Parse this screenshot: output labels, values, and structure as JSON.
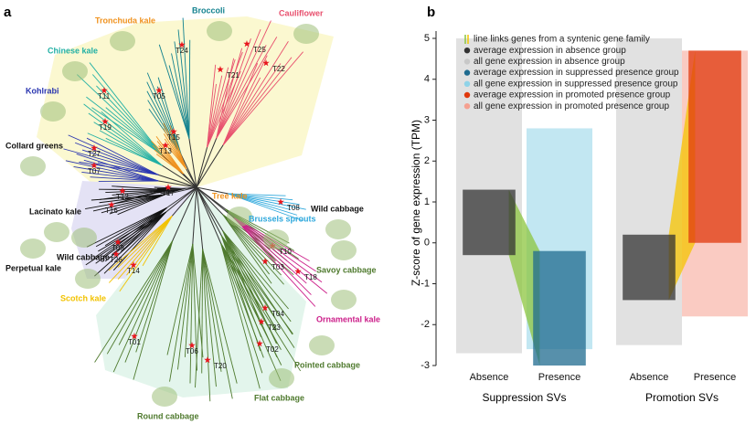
{
  "panel_a": {
    "label": "a",
    "groups": [
      {
        "label": "Tronchuda kale",
        "color": "#f0921e"
      },
      {
        "label": "Broccoli",
        "color": "#13828f"
      },
      {
        "label": "Cauliflower",
        "color": "#e8506e"
      },
      {
        "label": "Chinese kale",
        "color": "#22b0a4"
      },
      {
        "label": "Kohlrabi",
        "color": "#2a36b0"
      },
      {
        "label": "Collard greens",
        "color": "#111111"
      },
      {
        "label": "Tree kale",
        "color": "#f0921e"
      },
      {
        "label": "Brussels sprouts",
        "color": "#2ea8dc"
      },
      {
        "label": "Wild cabbage",
        "color": "#111111"
      },
      {
        "label": "Lacinato kale",
        "color": "#111111"
      },
      {
        "label": "Wild cabbage",
        "color": "#111111"
      },
      {
        "label": "Perpetual kale",
        "color": "#111111"
      },
      {
        "label": "Savoy cabbage",
        "color": "#4f7a2e"
      },
      {
        "label": "Scotch kale",
        "color": "#f2c200"
      },
      {
        "label": "Ornamental kale",
        "color": "#cc1f8a"
      },
      {
        "label": "Pointed cabbage",
        "color": "#4f7a2e"
      },
      {
        "label": "Flat cabbage",
        "color": "#4f7a2e"
      },
      {
        "label": "Round cabbage",
        "color": "#4f7a2e"
      }
    ],
    "nodes": [
      "T24",
      "T25",
      "T22",
      "T21",
      "T05",
      "T11",
      "T19",
      "T15",
      "T13",
      "T27",
      "T07",
      "T17",
      "T12",
      "T16",
      "T08",
      "T10",
      "T03",
      "T09",
      "T26",
      "T14",
      "T18",
      "T04",
      "T23",
      "T01",
      "T06",
      "T20",
      "T02"
    ]
  },
  "chart_data": {
    "type": "strip",
    "panel_label": "b",
    "ylabel": "Z-score of gene expression (TPM)",
    "categories": [
      "Absence",
      "Presence",
      "Absence",
      "Presence"
    ],
    "group_labels": [
      "Suppression SVs",
      "Promotion SVs"
    ],
    "ylim": [
      -3,
      5
    ],
    "yticks": [
      -3,
      -2,
      -1,
      0,
      1,
      2,
      3,
      4,
      5
    ],
    "series": [
      {
        "name": "line links genes from a syntenic gene family",
        "colors": [
          "#8cc63f",
          "#f5c400"
        ]
      },
      {
        "name": "average expression in absence group",
        "color": "#333333",
        "values": [
          [
            -0.3,
            1.3
          ],
          null,
          [
            -1.4,
            0.2
          ],
          null
        ]
      },
      {
        "name": "all gene expression in absence group",
        "color": "#c8c8c8",
        "values": [
          [
            -2.7,
            5
          ],
          null,
          [
            -2.5,
            5
          ],
          null
        ]
      },
      {
        "name": "average expression in suppressed presence group",
        "color": "#1f6b8f",
        "values": [
          null,
          [
            -3,
            -0.2
          ],
          null,
          null
        ]
      },
      {
        "name": "all gene expression in suppressed presence group",
        "color": "#8fd3e8",
        "values": [
          null,
          [
            -2.6,
            2.8
          ],
          null,
          null
        ]
      },
      {
        "name": "average expression in promoted presence group",
        "color": "#e0380c",
        "values": [
          null,
          null,
          null,
          [
            0,
            4.7
          ]
        ]
      },
      {
        "name": "all gene expression in promoted presence group",
        "color": "#f5a090",
        "values": [
          null,
          null,
          null,
          [
            -1.8,
            4.7
          ]
        ]
      }
    ]
  }
}
